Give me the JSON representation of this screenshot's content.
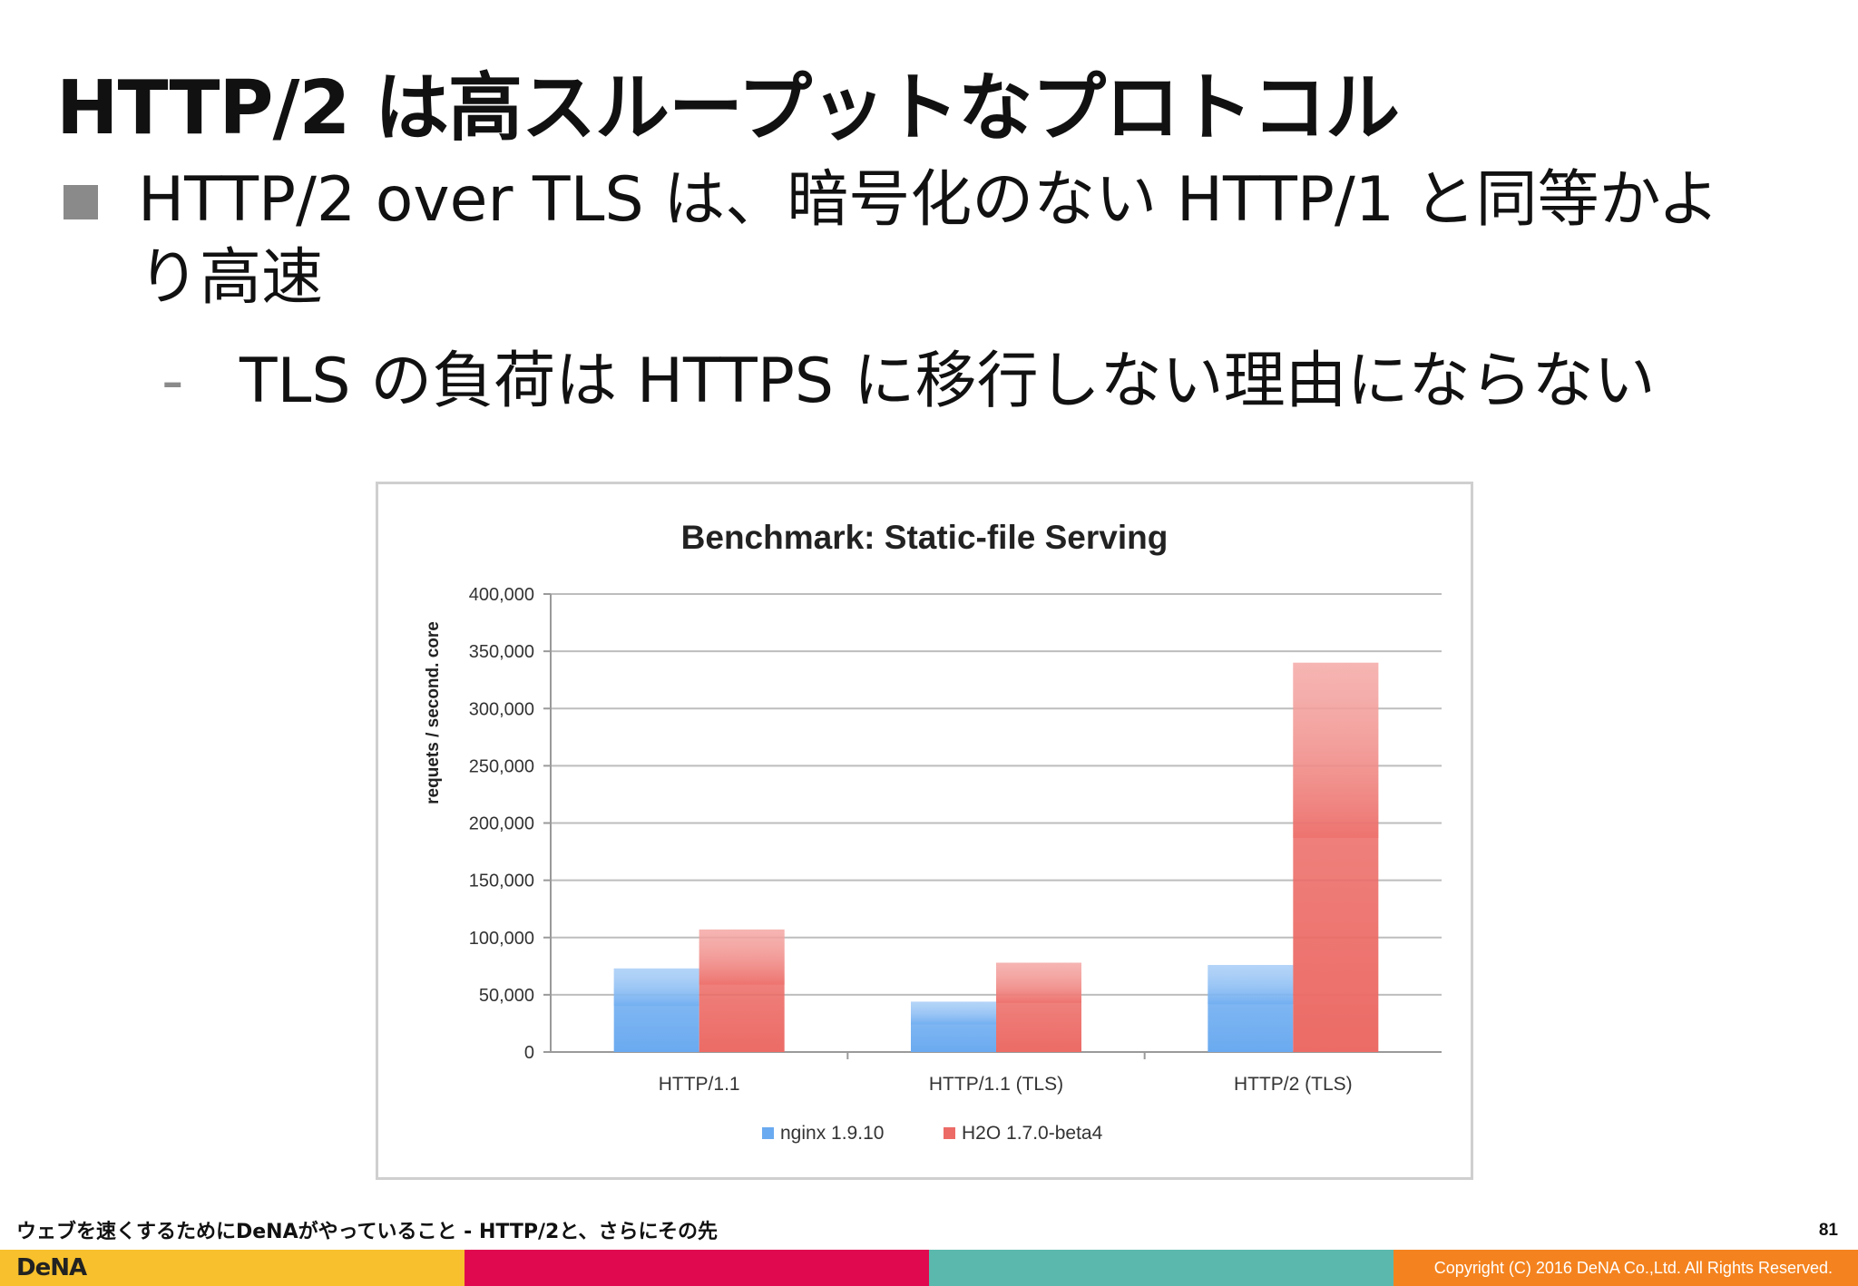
{
  "slide": {
    "title": "HTTP/2 は高スループットなプロトコル",
    "bullet": "HTTP/2 over TLS は、暗号化のない HTTP/1 と同等かより高速",
    "sub_marker": "-",
    "sub_bullet": "TLS の負荷は HTTPS に移行しない理由にならない"
  },
  "footer": {
    "talk_title": "ウェブを速くするためにDeNAがやっていること - HTTP/2と、さらにその先",
    "page_number": "81",
    "logo": "DeNA",
    "copyright": "Copyright (C) 2016 DeNA Co.,Ltd. All Rights Reserved.",
    "bar_colors": [
      "#f7c02c",
      "#e0094f",
      "#5bb8ad",
      "#f4831f"
    ]
  },
  "chart_data": {
    "type": "bar",
    "title": "Benchmark: Static-file Serving",
    "ylabel": "requets / second. core",
    "xlabel": "",
    "categories": [
      "HTTP/1.1",
      "HTTP/1.1 (TLS)",
      "HTTP/2 (TLS)"
    ],
    "series": [
      {
        "name": "nginx 1.9.10",
        "values": [
          73000,
          44000,
          76000
        ],
        "color": "#6aaaf0"
      },
      {
        "name": "H2O 1.7.0-beta4",
        "values": [
          107000,
          78000,
          340000
        ],
        "color": "#ec6b66"
      }
    ],
    "ylim": [
      0,
      400000
    ],
    "yticks": [
      "0",
      "50,000",
      "100,000",
      "150,000",
      "200,000",
      "250,000",
      "300,000",
      "350,000",
      "400,000"
    ],
    "grid": true,
    "legend": "bottom"
  }
}
